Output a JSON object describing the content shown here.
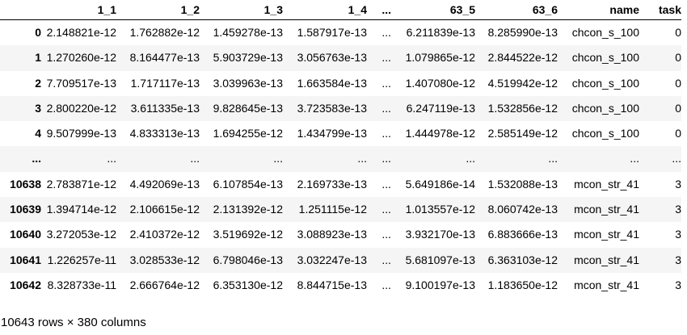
{
  "table": {
    "columns": [
      "1_1",
      "1_2",
      "1_3",
      "1_4",
      "...",
      "63_5",
      "63_6",
      "name",
      "task"
    ],
    "rows": [
      {
        "index": "0",
        "cells": [
          "2.148821e-12",
          "1.762882e-12",
          "1.459278e-13",
          "1.587917e-13",
          "...",
          "6.211839e-13",
          "8.285990e-13",
          "chcon_s_100",
          "0"
        ]
      },
      {
        "index": "1",
        "cells": [
          "1.270260e-12",
          "8.164477e-13",
          "5.903729e-13",
          "3.056763e-13",
          "...",
          "1.079865e-12",
          "2.844522e-12",
          "chcon_s_100",
          "0"
        ]
      },
      {
        "index": "2",
        "cells": [
          "7.709517e-13",
          "1.717117e-13",
          "3.039963e-13",
          "1.663584e-13",
          "...",
          "1.407080e-12",
          "4.519942e-12",
          "chcon_s_100",
          "0"
        ]
      },
      {
        "index": "3",
        "cells": [
          "2.800220e-12",
          "3.611335e-13",
          "9.828645e-13",
          "3.723583e-13",
          "...",
          "6.247119e-13",
          "1.532856e-12",
          "chcon_s_100",
          "0"
        ]
      },
      {
        "index": "4",
        "cells": [
          "9.507999e-13",
          "4.833313e-13",
          "1.694255e-12",
          "1.434799e-13",
          "...",
          "1.444978e-12",
          "2.585149e-12",
          "chcon_s_100",
          "0"
        ]
      },
      {
        "index": "...",
        "cells": [
          "...",
          "...",
          "...",
          "...",
          "...",
          "...",
          "...",
          "...",
          "..."
        ]
      },
      {
        "index": "10638",
        "cells": [
          "2.783871e-12",
          "4.492069e-13",
          "6.107854e-13",
          "2.169733e-13",
          "...",
          "5.649186e-14",
          "1.532088e-13",
          "mcon_str_41",
          "3"
        ]
      },
      {
        "index": "10639",
        "cells": [
          "1.394714e-12",
          "2.106615e-12",
          "2.131392e-12",
          "1.251115e-12",
          "...",
          "1.013557e-12",
          "8.060742e-13",
          "mcon_str_41",
          "3"
        ]
      },
      {
        "index": "10640",
        "cells": [
          "3.272053e-12",
          "2.410372e-12",
          "3.519692e-12",
          "3.088923e-13",
          "...",
          "3.932170e-13",
          "6.883666e-13",
          "mcon_str_41",
          "3"
        ]
      },
      {
        "index": "10641",
        "cells": [
          "1.226257e-11",
          "3.028533e-12",
          "6.798046e-13",
          "3.032247e-13",
          "...",
          "5.681097e-13",
          "6.363103e-12",
          "mcon_str_41",
          "3"
        ]
      },
      {
        "index": "10642",
        "cells": [
          "8.328733e-11",
          "2.666764e-12",
          "6.353130e-12",
          "8.844715e-13",
          "...",
          "9.100197e-13",
          "1.183650e-12",
          "mcon_str_41",
          "3"
        ]
      }
    ]
  },
  "footer": {
    "shape_text": "10643 rows × 380 columns"
  }
}
